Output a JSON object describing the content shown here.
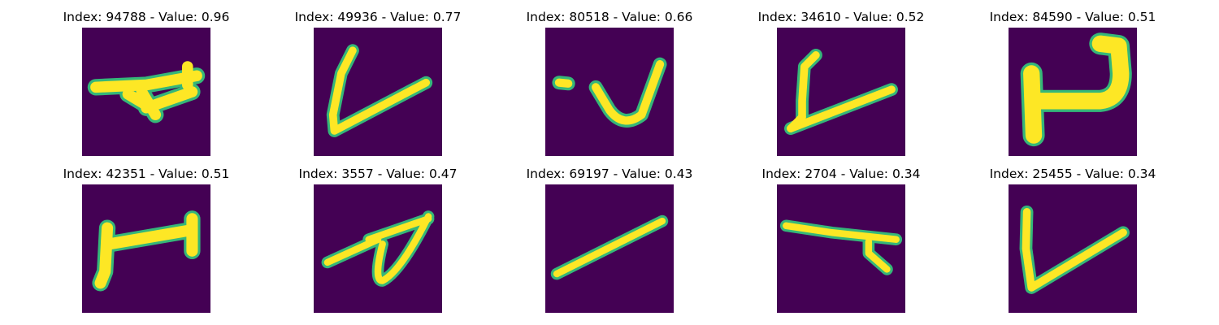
{
  "panels": [
    {
      "index": "94788",
      "value": "0.96",
      "title": "Index: 94788 - Value: 0.96",
      "glyph": "arrow-like-stroke"
    },
    {
      "index": "49936",
      "value": "0.77",
      "title": "Index: 49936 - Value: 0.77",
      "glyph": "v-like-stroke"
    },
    {
      "index": "80518",
      "value": "0.66",
      "title": "Index: 80518 - Value: 0.66",
      "glyph": "j-like-stroke"
    },
    {
      "index": "34610",
      "value": "0.52",
      "title": "Index: 34610 - Value: 0.52",
      "glyph": "v-like-stroke"
    },
    {
      "index": "84590",
      "value": "0.51",
      "title": "Index: 84590 - Value: 0.51",
      "glyph": "hook-shape"
    },
    {
      "index": "42351",
      "value": "0.51",
      "title": "Index: 42351 - Value: 0.51",
      "glyph": "i-like-stroke"
    },
    {
      "index": "3557",
      "value": "0.47",
      "title": "Index: 3557 - Value: 0.47",
      "glyph": "loop-stroke"
    },
    {
      "index": "69197",
      "value": "0.43",
      "title": "Index: 69197 - Value: 0.43",
      "glyph": "diagonal-line"
    },
    {
      "index": "2704",
      "value": "0.34",
      "title": "Index: 2704 - Value: 0.34",
      "glyph": "t-like-stroke"
    },
    {
      "index": "25455",
      "value": "0.34",
      "title": "Index: 25455 - Value: 0.34",
      "glyph": "v-like-stroke"
    }
  ],
  "colors": {
    "background": "#440154",
    "stroke_core": "#fde725",
    "stroke_edge": "#35b779"
  }
}
